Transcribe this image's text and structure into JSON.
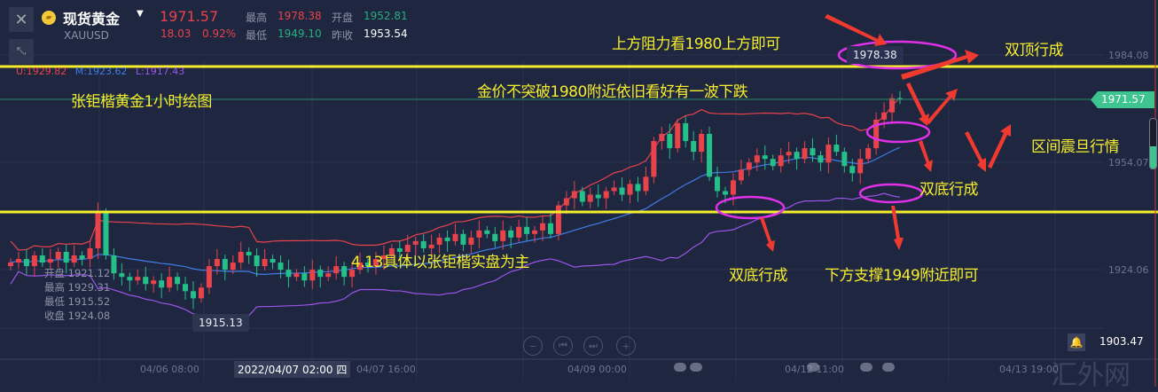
{
  "header": {
    "name": "现货黄金",
    "symbol": "XAUUSD",
    "price": "1971.57",
    "change": "18.03",
    "change_pct": "0.92%",
    "high_label": "最高",
    "high": "1978.38",
    "open_label": "开盘",
    "open": "1952.81",
    "low_label": "最低",
    "low": "1949.10",
    "prev_close_label": "昨收",
    "prev_close": "1953.54",
    "close_icon": "close-icon",
    "collapse_icon": "collapse-icon",
    "dropdown_icon": "caret-down-icon",
    "logo_icon": "gold-bars-icon"
  },
  "bands": {
    "upper": "U:1929.82",
    "middle": "M:1923.62",
    "lower": "L:1917.43",
    "colors": {
      "upper": "#e8434b",
      "middle": "#3f7de8",
      "lower": "#9a55e8"
    }
  },
  "ohlc_tooltip": [
    {
      "label": "开盘",
      "value": "1921.12"
    },
    {
      "label": "最高",
      "value": "1929.31"
    },
    {
      "label": "最低",
      "value": "1915.52"
    },
    {
      "label": "收盘",
      "value": "1924.08"
    }
  ],
  "markers": {
    "low": "1915.13",
    "high": "1978.38"
  },
  "y_axis": [
    "1984.08",
    "1954.07",
    "1924.06"
  ],
  "current_price_tag": "1971.57",
  "crosshair_price": "1903.47",
  "x_axis": {
    "labels": [
      "04/06 08:00",
      "04/07 16:00",
      "04/09 00:00",
      "04/12 11:00",
      "04/13 19:00"
    ],
    "crosshair": "2022/04/07 02:00 四"
  },
  "annotations": {
    "title": "张钜楷黄金1小时绘图",
    "resistance": "上方阻力看1980上方即可",
    "double_top": "双顶行成",
    "outlook": "金价不突破1980附近依旧看好有一波下跌",
    "range": "区间震旦行情",
    "double_bottom_right": "双底行成",
    "disclaimer": "4.13具体以张钜楷实盘为主",
    "double_bottom": "双底行成",
    "support": "下方支撑1949附近即可"
  },
  "nav_controls": [
    {
      "icon": "zoom-out-icon",
      "glyph": "−"
    },
    {
      "icon": "skip-back-icon",
      "glyph": "⏮"
    },
    {
      "icon": "skip-forward-icon",
      "glyph": "⏭"
    },
    {
      "icon": "zoom-in-icon",
      "glyph": "+"
    }
  ],
  "watermark": "汇外网",
  "colors": {
    "up": "#e8434b",
    "down": "#25c08a",
    "level_line": "#f6ee2c",
    "annotation_ellipse": "#e030e8",
    "arrow": "#f03a30",
    "background": "#1f2640"
  },
  "candles_close": [
    1926,
    1927,
    1925,
    1928,
    1926,
    1927,
    1929,
    1926,
    1928,
    1927,
    1930,
    1940,
    1928,
    1923,
    1922,
    1921,
    1922,
    1920,
    1921,
    1919,
    1922,
    1920,
    1918,
    1916,
    1919,
    1925,
    1927,
    1924,
    1926,
    1929,
    1928,
    1925,
    1927,
    1926,
    1924,
    1922,
    1923,
    1921,
    1924,
    1922,
    1923,
    1925,
    1922,
    1924,
    1926,
    1925,
    1927,
    1928,
    1930,
    1929,
    1931,
    1932,
    1930,
    1931,
    1933,
    1932,
    1934,
    1931,
    1933,
    1935,
    1934,
    1932,
    1935,
    1933,
    1936,
    1934,
    1935,
    1937,
    1934,
    1942,
    1944,
    1946,
    1943,
    1945,
    1944,
    1946,
    1947,
    1945,
    1948,
    1946,
    1950,
    1960,
    1962,
    1958,
    1965,
    1960,
    1957,
    1962,
    1950,
    1946,
    1945,
    1949,
    1952,
    1954,
    1956,
    1955,
    1953,
    1956,
    1957,
    1955,
    1958,
    1956,
    1954,
    1959,
    1957,
    1953,
    1951,
    1955,
    1958,
    1966,
    1968,
    1972,
    1971.57
  ]
}
